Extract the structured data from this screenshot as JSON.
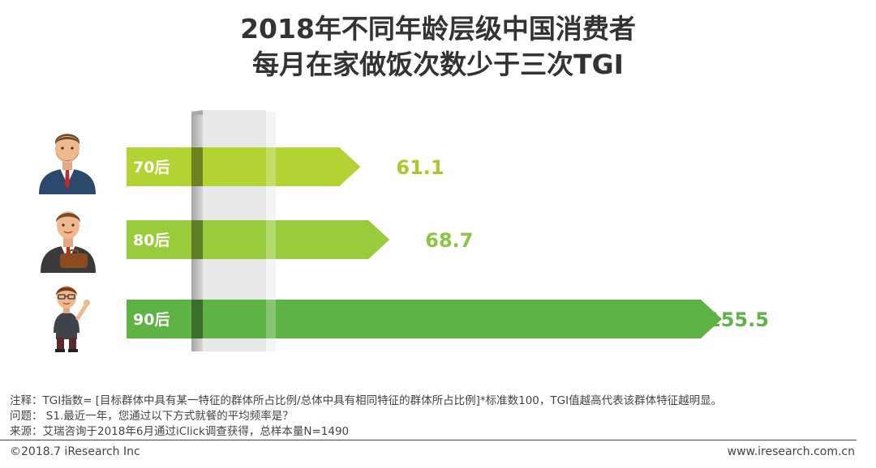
{
  "title": {
    "line1": "2018年不同年龄层级中国消费者",
    "line2": "每月在家做饭次数少于三次TGI"
  },
  "chart_data": {
    "type": "bar",
    "orientation": "horizontal",
    "title": "2018年不同年龄层级中国消费者每月在家做饭次数少于三次TGI",
    "categories": [
      "70后",
      "80后",
      "90后"
    ],
    "values": [
      61.1,
      68.7,
      155.5
    ],
    "value_labels": [
      "61.1",
      "68.7",
      "155.5"
    ],
    "xlim": [
      0,
      155.5
    ],
    "colors": [
      "#b3d234",
      "#98cc3c",
      "#5fb244"
    ],
    "value_colors": [
      "#a8c92c",
      "#8cc63f",
      "#5fb244"
    ]
  },
  "people": [
    {
      "icon": "man-suit-beard-icon"
    },
    {
      "icon": "businessman-briefcase-icon"
    },
    {
      "icon": "young-man-glasses-waving-icon"
    }
  ],
  "notes": {
    "line1": "注释：TGI指数= [目标群体中具有某一特征的群体所占比例/总体中具有相同特征的群体所占比例]*标准数100，TGI值越高代表该群体特征越明显。",
    "line2": "问题： S1.最近一年，您通过以下方式就餐的平均频率是？",
    "line3": "来源：艾瑞咨询于2018年6月通过iClick调查获得，总样本量N=1490"
  },
  "footer": {
    "copyright": "©2018.7 iResearch Inc",
    "website": "www.iresearch.com.cn"
  }
}
